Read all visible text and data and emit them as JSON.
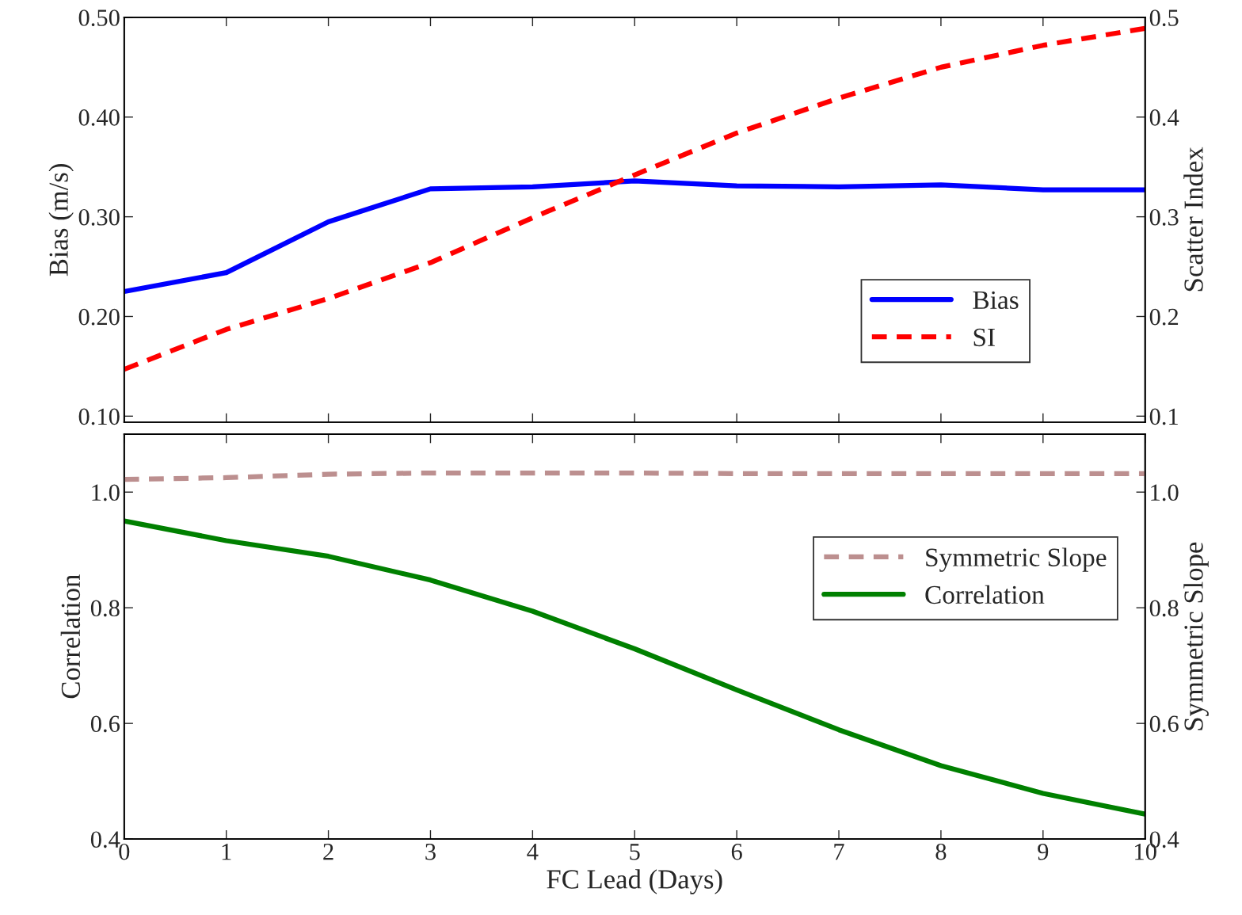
{
  "chart_data": [
    {
      "type": "line",
      "ylabel": "Bias (m/s)",
      "y2label": "Scatter Index",
      "x": [
        0,
        1,
        2,
        3,
        4,
        5,
        6,
        7,
        8,
        9,
        10
      ],
      "xlim": [
        0,
        10
      ],
      "xticks": [
        0,
        1,
        2,
        3,
        4,
        5,
        6,
        7,
        8,
        9,
        10
      ],
      "ylim": [
        0.094,
        0.5
      ],
      "yticks": [
        {
          "value": 0.1,
          "label": "0.10"
        },
        {
          "value": 0.2,
          "label": "0.20"
        },
        {
          "value": 0.3,
          "label": "0.30"
        },
        {
          "value": 0.4,
          "label": "0.40"
        },
        {
          "value": 0.5,
          "label": "0.50"
        }
      ],
      "y2lim": [
        0.094,
        0.5
      ],
      "y2ticks": [
        0.1,
        0.2,
        0.3,
        0.4,
        0.5
      ],
      "tick_labels": "y",
      "legend": "center right",
      "grid": false,
      "series": [
        {
          "name": "Bias",
          "color": "#0000ff",
          "line_style": "solid",
          "values": [
            0.225,
            0.244,
            0.295,
            0.328,
            0.33,
            0.336,
            0.331,
            0.33,
            0.332,
            0.327,
            0.327
          ]
        },
        {
          "name": "SI",
          "color": "#ff0000",
          "line_style": "dashed",
          "axis": "y2",
          "values": [
            0.147,
            0.187,
            0.218,
            0.254,
            0.299,
            0.342,
            0.384,
            0.419,
            0.45,
            0.472,
            0.489
          ]
        }
      ]
    },
    {
      "type": "line",
      "xlabel": "FC Lead (Days)",
      "ylabel": "Correlation",
      "y2label": "Symmetric Slope",
      "x": [
        0,
        1,
        2,
        3,
        4,
        5,
        6,
        7,
        8,
        9,
        10
      ],
      "xlim": [
        0,
        10
      ],
      "xticks": [
        0,
        1,
        2,
        3,
        4,
        5,
        6,
        7,
        8,
        9,
        10
      ],
      "ylim": [
        0.4,
        1.1
      ],
      "yticks": [
        0.4,
        0.6,
        0.8,
        {
          "value": 1.0,
          "label": "1.0"
        }
      ],
      "y2lim": [
        0.4,
        1.1
      ],
      "y2ticks": [
        0.4,
        0.6,
        0.8,
        {
          "value": 1.0,
          "label": "1.0"
        }
      ],
      "legend": "center right",
      "grid": false,
      "series": [
        {
          "name": "Symmetric Slope",
          "color": "#bc8f8f",
          "line_style": "dashed",
          "axis": "y2",
          "values": [
            1.022,
            1.025,
            1.031,
            1.033,
            1.033,
            1.033,
            1.032,
            1.032,
            1.032,
            1.032,
            1.032
          ]
        },
        {
          "name": "Correlation",
          "color": "#008000",
          "line_style": "solid",
          "values": [
            0.95,
            0.916,
            0.889,
            0.848,
            0.794,
            0.729,
            0.658,
            0.589,
            0.527,
            0.479,
            0.443
          ]
        }
      ]
    }
  ]
}
